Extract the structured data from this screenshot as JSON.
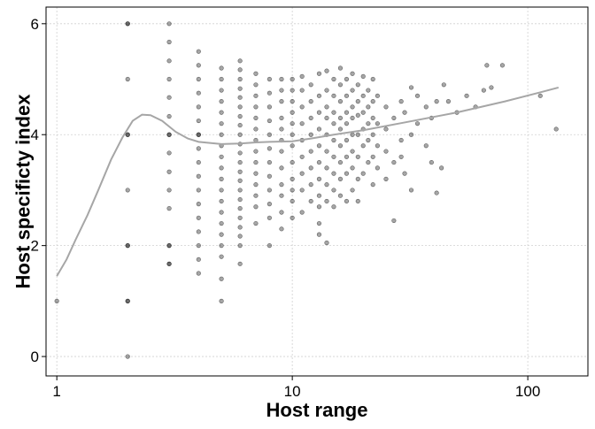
{
  "chart_data": {
    "type": "scatter",
    "title": "",
    "xlabel": "Host range",
    "ylabel": "Host specificty index",
    "x_scale": "log10",
    "xlim": [
      0.9,
      180
    ],
    "ylim": [
      -0.35,
      6.3
    ],
    "x_ticks": [
      1,
      10,
      100
    ],
    "x_tick_labels": [
      "1",
      "10",
      "100"
    ],
    "y_ticks": [
      0,
      2,
      4,
      6
    ],
    "y_tick_labels": [
      "0",
      "2",
      "4",
      "6"
    ],
    "grid": true,
    "legend": "none",
    "point_color": "#000000",
    "point_alpha": 0.35,
    "smooth_color": "#a6a6a6",
    "points": [
      {
        "x": 1,
        "y": 1
      },
      {
        "x": 2,
        "y": 0
      },
      {
        "x": 2,
        "y": 1
      },
      {
        "x": 2,
        "y": 1
      },
      {
        "x": 2,
        "y": 2
      },
      {
        "x": 2,
        "y": 2
      },
      {
        "x": 2,
        "y": 3
      },
      {
        "x": 2,
        "y": 4
      },
      {
        "x": 2,
        "y": 4
      },
      {
        "x": 2,
        "y": 5
      },
      {
        "x": 2,
        "y": 6
      },
      {
        "x": 2,
        "y": 6
      },
      {
        "x": 3,
        "y": 1.67
      },
      {
        "x": 3,
        "y": 1.67
      },
      {
        "x": 3,
        "y": 2
      },
      {
        "x": 3,
        "y": 2
      },
      {
        "x": 3,
        "y": 2.67
      },
      {
        "x": 3,
        "y": 3
      },
      {
        "x": 3,
        "y": 3.33
      },
      {
        "x": 3,
        "y": 3.67
      },
      {
        "x": 3,
        "y": 4
      },
      {
        "x": 3,
        "y": 4
      },
      {
        "x": 3,
        "y": 4.33
      },
      {
        "x": 3,
        "y": 4.67
      },
      {
        "x": 3,
        "y": 5
      },
      {
        "x": 3,
        "y": 5.33
      },
      {
        "x": 3,
        "y": 5.67
      },
      {
        "x": 3,
        "y": 6
      },
      {
        "x": 4,
        "y": 1.5
      },
      {
        "x": 4,
        "y": 1.75
      },
      {
        "x": 4,
        "y": 2
      },
      {
        "x": 4,
        "y": 2.25
      },
      {
        "x": 4,
        "y": 2.5
      },
      {
        "x": 4,
        "y": 2.75
      },
      {
        "x": 4,
        "y": 3
      },
      {
        "x": 4,
        "y": 3.25
      },
      {
        "x": 4,
        "y": 3.5
      },
      {
        "x": 4,
        "y": 3.75
      },
      {
        "x": 4,
        "y": 4
      },
      {
        "x": 4,
        "y": 4
      },
      {
        "x": 4,
        "y": 4.25
      },
      {
        "x": 4,
        "y": 4.5
      },
      {
        "x": 4,
        "y": 4.75
      },
      {
        "x": 4,
        "y": 5
      },
      {
        "x": 4,
        "y": 5.25
      },
      {
        "x": 4,
        "y": 5.5
      },
      {
        "x": 5,
        "y": 1
      },
      {
        "x": 5,
        "y": 1.4
      },
      {
        "x": 5,
        "y": 1.8
      },
      {
        "x": 5,
        "y": 2
      },
      {
        "x": 5,
        "y": 2.2
      },
      {
        "x": 5,
        "y": 2.4
      },
      {
        "x": 5,
        "y": 2.6
      },
      {
        "x": 5,
        "y": 2.8
      },
      {
        "x": 5,
        "y": 3
      },
      {
        "x": 5,
        "y": 3.2
      },
      {
        "x": 5,
        "y": 3.4
      },
      {
        "x": 5,
        "y": 3.6
      },
      {
        "x": 5,
        "y": 3.8
      },
      {
        "x": 5,
        "y": 4
      },
      {
        "x": 5,
        "y": 4.2
      },
      {
        "x": 5,
        "y": 4.4
      },
      {
        "x": 5,
        "y": 4.6
      },
      {
        "x": 5,
        "y": 4.8
      },
      {
        "x": 5,
        "y": 5
      },
      {
        "x": 5,
        "y": 5.2
      },
      {
        "x": 6,
        "y": 1.67
      },
      {
        "x": 6,
        "y": 2
      },
      {
        "x": 6,
        "y": 2.17
      },
      {
        "x": 6,
        "y": 2.33
      },
      {
        "x": 6,
        "y": 2.5
      },
      {
        "x": 6,
        "y": 2.67
      },
      {
        "x": 6,
        "y": 2.83
      },
      {
        "x": 6,
        "y": 3
      },
      {
        "x": 6,
        "y": 3.17
      },
      {
        "x": 6,
        "y": 3.33
      },
      {
        "x": 6,
        "y": 3.5
      },
      {
        "x": 6,
        "y": 3.67
      },
      {
        "x": 6,
        "y": 3.83
      },
      {
        "x": 6,
        "y": 4
      },
      {
        "x": 6,
        "y": 4.17
      },
      {
        "x": 6,
        "y": 4.33
      },
      {
        "x": 6,
        "y": 4.5
      },
      {
        "x": 6,
        "y": 4.67
      },
      {
        "x": 6,
        "y": 4.83
      },
      {
        "x": 6,
        "y": 5
      },
      {
        "x": 6,
        "y": 5.17
      },
      {
        "x": 6,
        "y": 5.33
      },
      {
        "x": 7,
        "y": 2.4
      },
      {
        "x": 7,
        "y": 2.7
      },
      {
        "x": 7,
        "y": 2.9
      },
      {
        "x": 7,
        "y": 3.1
      },
      {
        "x": 7,
        "y": 3.3
      },
      {
        "x": 7,
        "y": 3.5
      },
      {
        "x": 7,
        "y": 3.7
      },
      {
        "x": 7,
        "y": 3.9
      },
      {
        "x": 7,
        "y": 4.1
      },
      {
        "x": 7,
        "y": 4.3
      },
      {
        "x": 7,
        "y": 4.5
      },
      {
        "x": 7,
        "y": 4.7
      },
      {
        "x": 7,
        "y": 4.9
      },
      {
        "x": 7,
        "y": 5.1
      },
      {
        "x": 8,
        "y": 2
      },
      {
        "x": 8,
        "y": 2.5
      },
      {
        "x": 8,
        "y": 2.75
      },
      {
        "x": 8,
        "y": 3
      },
      {
        "x": 8,
        "y": 3.25
      },
      {
        "x": 8,
        "y": 3.5
      },
      {
        "x": 8,
        "y": 3.75
      },
      {
        "x": 8,
        "y": 4
      },
      {
        "x": 8,
        "y": 4.25
      },
      {
        "x": 8,
        "y": 4.5
      },
      {
        "x": 8,
        "y": 4.75
      },
      {
        "x": 8,
        "y": 5
      },
      {
        "x": 9,
        "y": 2.3
      },
      {
        "x": 9,
        "y": 2.6
      },
      {
        "x": 9,
        "y": 2.9
      },
      {
        "x": 9,
        "y": 3.1
      },
      {
        "x": 9,
        "y": 3.4
      },
      {
        "x": 9,
        "y": 3.7
      },
      {
        "x": 9,
        "y": 3.9
      },
      {
        "x": 9,
        "y": 4.1
      },
      {
        "x": 9,
        "y": 4.3
      },
      {
        "x": 9,
        "y": 4.6
      },
      {
        "x": 9,
        "y": 4.8
      },
      {
        "x": 9,
        "y": 5
      },
      {
        "x": 10,
        "y": 2.5
      },
      {
        "x": 10,
        "y": 2.8
      },
      {
        "x": 10,
        "y": 3
      },
      {
        "x": 10,
        "y": 3.2
      },
      {
        "x": 10,
        "y": 3.5
      },
      {
        "x": 10,
        "y": 3.8
      },
      {
        "x": 10,
        "y": 4
      },
      {
        "x": 10,
        "y": 4.2
      },
      {
        "x": 10,
        "y": 4.4
      },
      {
        "x": 10,
        "y": 4.6
      },
      {
        "x": 10,
        "y": 4.8
      },
      {
        "x": 10,
        "y": 5
      },
      {
        "x": 11,
        "y": 2.6
      },
      {
        "x": 11,
        "y": 3
      },
      {
        "x": 11,
        "y": 3.3
      },
      {
        "x": 11,
        "y": 3.6
      },
      {
        "x": 11,
        "y": 3.9
      },
      {
        "x": 11,
        "y": 4.2
      },
      {
        "x": 11,
        "y": 4.5
      },
      {
        "x": 11,
        "y": 4.8
      },
      {
        "x": 11,
        "y": 5.05
      },
      {
        "x": 12,
        "y": 2.8
      },
      {
        "x": 12,
        "y": 3.1
      },
      {
        "x": 12,
        "y": 3.4
      },
      {
        "x": 12,
        "y": 3.7
      },
      {
        "x": 12,
        "y": 4
      },
      {
        "x": 12,
        "y": 4.3
      },
      {
        "x": 12,
        "y": 4.6
      },
      {
        "x": 12,
        "y": 4.9
      },
      {
        "x": 13,
        "y": 2.2
      },
      {
        "x": 13,
        "y": 2.4
      },
      {
        "x": 13,
        "y": 2.7
      },
      {
        "x": 13,
        "y": 2.9
      },
      {
        "x": 13,
        "y": 3.2
      },
      {
        "x": 13,
        "y": 3.5
      },
      {
        "x": 13,
        "y": 3.8
      },
      {
        "x": 13,
        "y": 4.1
      },
      {
        "x": 13,
        "y": 4.4
      },
      {
        "x": 13,
        "y": 4.7
      },
      {
        "x": 13,
        "y": 5.1
      },
      {
        "x": 14,
        "y": 2.05
      },
      {
        "x": 14,
        "y": 2.8
      },
      {
        "x": 14,
        "y": 3.1
      },
      {
        "x": 14,
        "y": 3.4
      },
      {
        "x": 14,
        "y": 3.7
      },
      {
        "x": 14,
        "y": 4
      },
      {
        "x": 14,
        "y": 4.3
      },
      {
        "x": 14,
        "y": 4.5
      },
      {
        "x": 14,
        "y": 4.8
      },
      {
        "x": 14,
        "y": 5.15
      },
      {
        "x": 15,
        "y": 2.7
      },
      {
        "x": 15,
        "y": 3
      },
      {
        "x": 15,
        "y": 3.3
      },
      {
        "x": 15,
        "y": 3.6
      },
      {
        "x": 15,
        "y": 3.9
      },
      {
        "x": 15,
        "y": 4.2
      },
      {
        "x": 15,
        "y": 4.4
      },
      {
        "x": 15,
        "y": 4.7
      },
      {
        "x": 15,
        "y": 5
      },
      {
        "x": 16,
        "y": 2.9
      },
      {
        "x": 16,
        "y": 3.2
      },
      {
        "x": 16,
        "y": 3.5
      },
      {
        "x": 16,
        "y": 3.8
      },
      {
        "x": 16,
        "y": 4.1
      },
      {
        "x": 16,
        "y": 4.3
      },
      {
        "x": 16,
        "y": 4.6
      },
      {
        "x": 16,
        "y": 4.9
      },
      {
        "x": 16,
        "y": 5.2
      },
      {
        "x": 17,
        "y": 2.8
      },
      {
        "x": 17,
        "y": 3.3
      },
      {
        "x": 17,
        "y": 3.6
      },
      {
        "x": 17,
        "y": 3.9
      },
      {
        "x": 17,
        "y": 4.2
      },
      {
        "x": 17,
        "y": 4.4
      },
      {
        "x": 17,
        "y": 4.7
      },
      {
        "x": 17,
        "y": 5
      },
      {
        "x": 18,
        "y": 3
      },
      {
        "x": 18,
        "y": 3.4
      },
      {
        "x": 18,
        "y": 3.7
      },
      {
        "x": 18,
        "y": 4
      },
      {
        "x": 18,
        "y": 4.3
      },
      {
        "x": 18,
        "y": 4.5
      },
      {
        "x": 18,
        "y": 4.8
      },
      {
        "x": 18,
        "y": 5.1
      },
      {
        "x": 19,
        "y": 2.8
      },
      {
        "x": 19,
        "y": 3.2
      },
      {
        "x": 19,
        "y": 3.6
      },
      {
        "x": 19,
        "y": 4
      },
      {
        "x": 19,
        "y": 4.35
      },
      {
        "x": 19,
        "y": 4.6
      },
      {
        "x": 19,
        "y": 4.9
      },
      {
        "x": 20,
        "y": 3.3
      },
      {
        "x": 20,
        "y": 3.8
      },
      {
        "x": 20,
        "y": 4.1
      },
      {
        "x": 20,
        "y": 4.4
      },
      {
        "x": 20,
        "y": 4.7
      },
      {
        "x": 20,
        "y": 5.05
      },
      {
        "x": 21,
        "y": 3.5
      },
      {
        "x": 21,
        "y": 3.9
      },
      {
        "x": 21,
        "y": 4.2
      },
      {
        "x": 21,
        "y": 4.5
      },
      {
        "x": 21,
        "y": 4.8
      },
      {
        "x": 22,
        "y": 3.1
      },
      {
        "x": 22,
        "y": 3.6
      },
      {
        "x": 22,
        "y": 4
      },
      {
        "x": 22,
        "y": 4.3
      },
      {
        "x": 22,
        "y": 4.6
      },
      {
        "x": 22,
        "y": 5
      },
      {
        "x": 23,
        "y": 3.4
      },
      {
        "x": 23,
        "y": 3.8
      },
      {
        "x": 23,
        "y": 4.2
      },
      {
        "x": 23,
        "y": 4.7
      },
      {
        "x": 25,
        "y": 3.2
      },
      {
        "x": 25,
        "y": 3.7
      },
      {
        "x": 25,
        "y": 4.1
      },
      {
        "x": 25,
        "y": 4.5
      },
      {
        "x": 27,
        "y": 2.45
      },
      {
        "x": 27,
        "y": 3.5
      },
      {
        "x": 27,
        "y": 4.3
      },
      {
        "x": 29,
        "y": 3.6
      },
      {
        "x": 29,
        "y": 3.9
      },
      {
        "x": 29,
        "y": 4.6
      },
      {
        "x": 30,
        "y": 3.3
      },
      {
        "x": 30,
        "y": 4.4
      },
      {
        "x": 32,
        "y": 3
      },
      {
        "x": 32,
        "y": 4
      },
      {
        "x": 32,
        "y": 4.85
      },
      {
        "x": 34,
        "y": 4.2
      },
      {
        "x": 34,
        "y": 4.7
      },
      {
        "x": 37,
        "y": 3.8
      },
      {
        "x": 37,
        "y": 4.5
      },
      {
        "x": 39,
        "y": 3.5
      },
      {
        "x": 39,
        "y": 4.3
      },
      {
        "x": 41,
        "y": 2.95
      },
      {
        "x": 41,
        "y": 4.6
      },
      {
        "x": 43,
        "y": 3.4
      },
      {
        "x": 44,
        "y": 4.9
      },
      {
        "x": 46,
        "y": 4.6
      },
      {
        "x": 50,
        "y": 4.4
      },
      {
        "x": 55,
        "y": 4.7
      },
      {
        "x": 60,
        "y": 4.5
      },
      {
        "x": 65,
        "y": 4.8
      },
      {
        "x": 67,
        "y": 5.25
      },
      {
        "x": 70,
        "y": 4.85
      },
      {
        "x": 78,
        "y": 5.25
      },
      {
        "x": 113,
        "y": 4.7
      },
      {
        "x": 132,
        "y": 4.1
      }
    ],
    "smooth_line": [
      {
        "x": 1,
        "y": 1.45
      },
      {
        "x": 1.1,
        "y": 1.75
      },
      {
        "x": 1.2,
        "y": 2.1
      },
      {
        "x": 1.35,
        "y": 2.55
      },
      {
        "x": 1.5,
        "y": 3
      },
      {
        "x": 1.7,
        "y": 3.55
      },
      {
        "x": 1.9,
        "y": 3.95
      },
      {
        "x": 2.1,
        "y": 4.25
      },
      {
        "x": 2.3,
        "y": 4.36
      },
      {
        "x": 2.5,
        "y": 4.35
      },
      {
        "x": 2.8,
        "y": 4.25
      },
      {
        "x": 3.2,
        "y": 4.05
      },
      {
        "x": 3.6,
        "y": 3.93
      },
      {
        "x": 4,
        "y": 3.87
      },
      {
        "x": 5,
        "y": 3.83
      },
      {
        "x": 6,
        "y": 3.84
      },
      {
        "x": 7,
        "y": 3.86
      },
      {
        "x": 8,
        "y": 3.87
      },
      {
        "x": 10,
        "y": 3.88
      },
      {
        "x": 12,
        "y": 3.93
      },
      {
        "x": 15,
        "y": 4
      },
      {
        "x": 20,
        "y": 4.08
      },
      {
        "x": 30,
        "y": 4.22
      },
      {
        "x": 50,
        "y": 4.4
      },
      {
        "x": 80,
        "y": 4.6
      },
      {
        "x": 110,
        "y": 4.75
      },
      {
        "x": 135,
        "y": 4.85
      }
    ]
  }
}
